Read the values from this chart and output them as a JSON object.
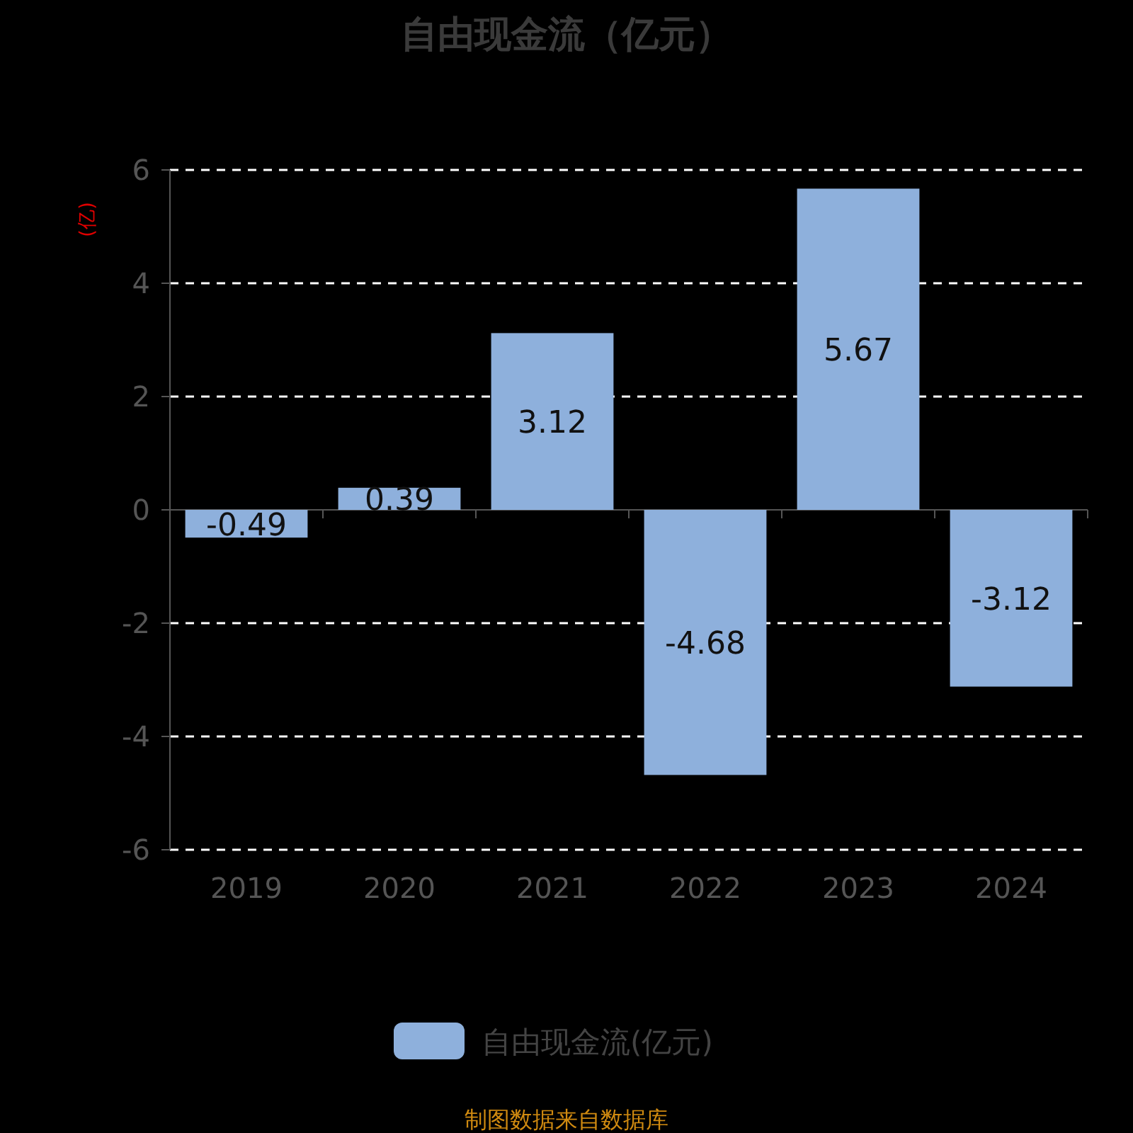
{
  "chart_data": {
    "type": "bar",
    "title": "自由现金流（亿元）",
    "ylabel": "(亿)",
    "categories": [
      "2019",
      "2020",
      "2021",
      "2022",
      "2023",
      "2024"
    ],
    "series": [
      {
        "name": "自由现金流(亿元)",
        "color": "#8eb0dc",
        "values": [
          -0.49,
          0.39,
          3.12,
          -4.68,
          5.67,
          -3.12
        ]
      }
    ],
    "ylim": [
      -6,
      6
    ],
    "yticks": [
      -6,
      -4,
      -2,
      0,
      2,
      4,
      6
    ],
    "grid": "y",
    "data_labels": true,
    "legend": "bottom",
    "annotations": [
      "制图数据来自数据库"
    ]
  }
}
